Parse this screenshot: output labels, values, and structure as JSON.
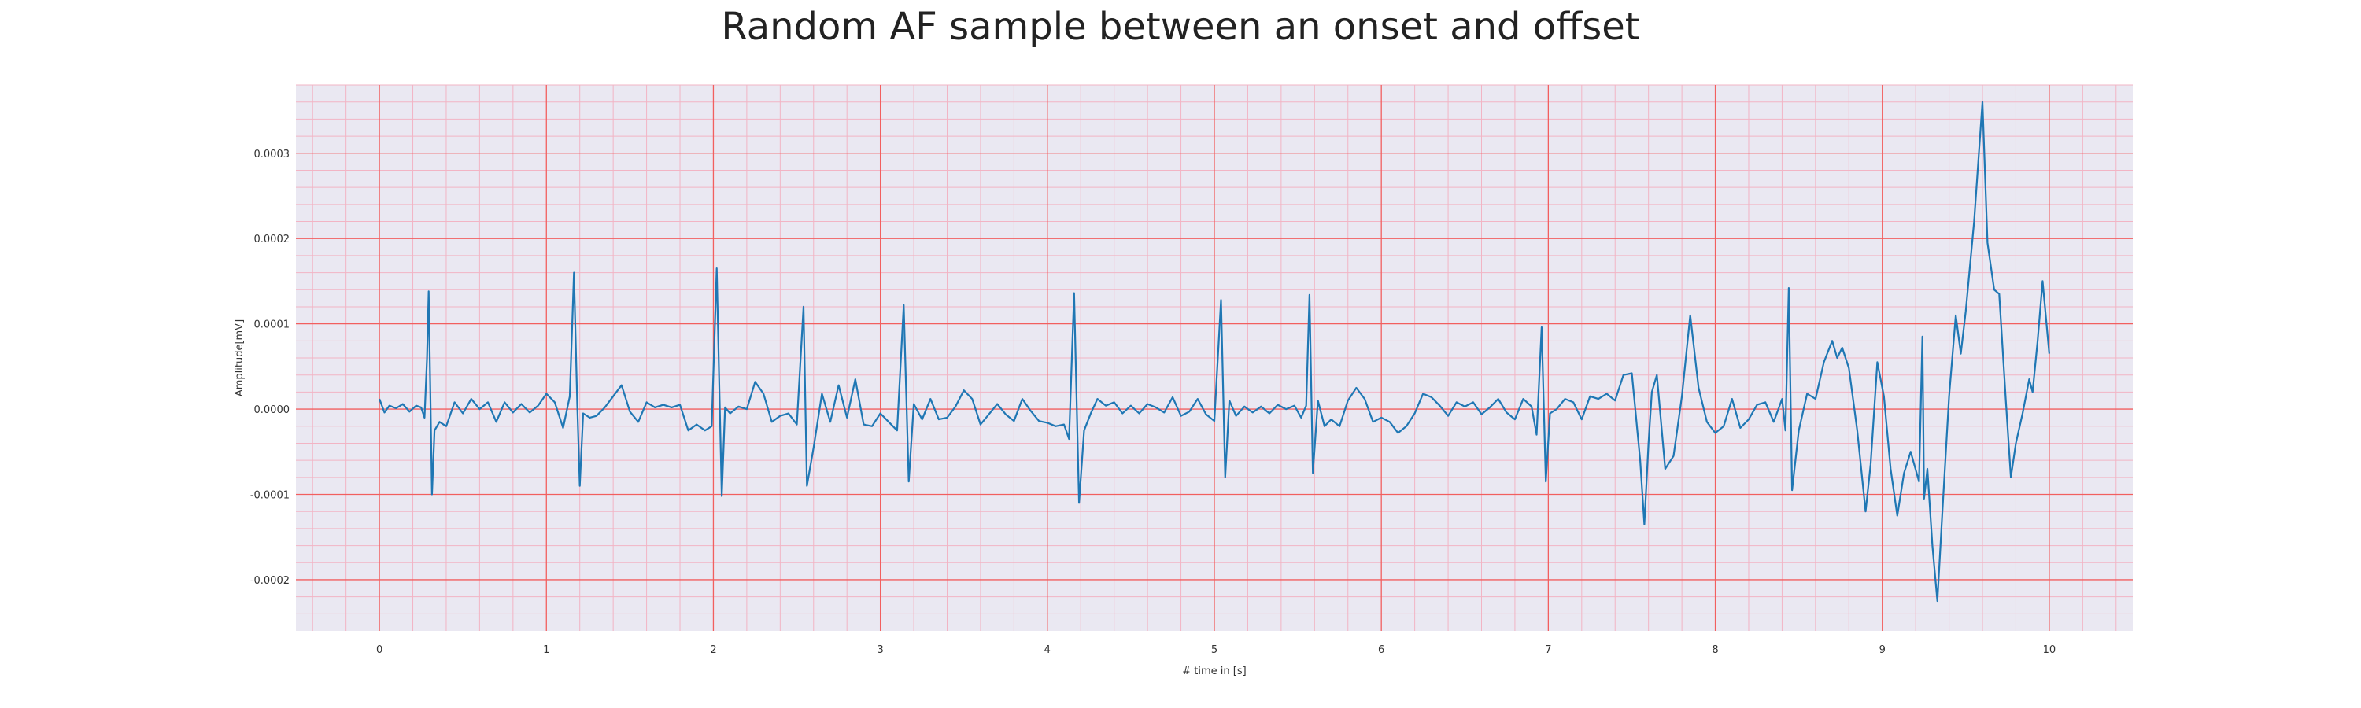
{
  "chart_data": {
    "type": "line",
    "title": "Random AF sample between an onset and offset",
    "xlabel": "# time in [s]",
    "ylabel": "Amplitude[mV]",
    "xlim": [
      -0.5,
      10.5
    ],
    "ylim": [
      -0.00026,
      0.00038
    ],
    "x_ticks": [
      0,
      1,
      2,
      3,
      4,
      5,
      6,
      7,
      8,
      9,
      10
    ],
    "x_tick_labels": [
      "0",
      "1",
      "2",
      "3",
      "4",
      "5",
      "6",
      "7",
      "8",
      "9",
      "10"
    ],
    "y_ticks": [
      -0.0002,
      -0.0001,
      0.0,
      0.0001,
      0.0002,
      0.0003
    ],
    "y_tick_labels": [
      "-0.0002",
      "-0.0001",
      "0.0000",
      "0.0001",
      "0.0002",
      "0.0003"
    ],
    "grid": true,
    "minor_grid": true,
    "colors": {
      "plot_background": "#eae8f2",
      "major_grid": "#f25f5f",
      "minor_grid": "#f2b4c4",
      "line": "#1f77b4"
    },
    "series": [
      {
        "color": "#1f77b4",
        "points": [
          [
            0.0,
            1.2e-05
          ],
          [
            0.03,
            -4e-06
          ],
          [
            0.06,
            4e-06
          ],
          [
            0.1,
            1e-06
          ],
          [
            0.14,
            6e-06
          ],
          [
            0.18,
            -3e-06
          ],
          [
            0.22,
            4e-06
          ],
          [
            0.25,
            2e-06
          ],
          [
            0.27,
            -1e-05
          ],
          [
            0.285,
            6e-05
          ],
          [
            0.295,
            0.000138
          ],
          [
            0.305,
            2e-05
          ],
          [
            0.315,
            -0.0001
          ],
          [
            0.33,
            -2.5e-05
          ],
          [
            0.36,
            -1.5e-05
          ],
          [
            0.4,
            -2e-05
          ],
          [
            0.45,
            8e-06
          ],
          [
            0.5,
            -5e-06
          ],
          [
            0.55,
            1.2e-05
          ],
          [
            0.6,
            0.0
          ],
          [
            0.65,
            8e-06
          ],
          [
            0.7,
            -1.5e-05
          ],
          [
            0.75,
            8e-06
          ],
          [
            0.8,
            -4e-06
          ],
          [
            0.85,
            6e-06
          ],
          [
            0.9,
            -4e-06
          ],
          [
            0.95,
            4e-06
          ],
          [
            1.0,
            1.8e-05
          ],
          [
            1.05,
            8e-06
          ],
          [
            1.1,
            -2.2e-05
          ],
          [
            1.14,
            1.5e-05
          ],
          [
            1.165,
            0.00016
          ],
          [
            1.185,
            5e-06
          ],
          [
            1.2,
            -9e-05
          ],
          [
            1.22,
            -5e-06
          ],
          [
            1.26,
            -1e-05
          ],
          [
            1.3,
            -8e-06
          ],
          [
            1.35,
            2e-06
          ],
          [
            1.4,
            1.5e-05
          ],
          [
            1.45,
            2.8e-05
          ],
          [
            1.5,
            -3e-06
          ],
          [
            1.55,
            -1.5e-05
          ],
          [
            1.6,
            8e-06
          ],
          [
            1.65,
            2e-06
          ],
          [
            1.7,
            5e-06
          ],
          [
            1.75,
            2e-06
          ],
          [
            1.8,
            5e-06
          ],
          [
            1.85,
            -2.5e-05
          ],
          [
            1.9,
            -1.8e-05
          ],
          [
            1.95,
            -2.5e-05
          ],
          [
            1.99,
            -2e-05
          ],
          [
            2.02,
            0.000165
          ],
          [
            2.035,
            3e-05
          ],
          [
            2.05,
            -0.000102
          ],
          [
            2.07,
            2e-06
          ],
          [
            2.1,
            -5e-06
          ],
          [
            2.15,
            3e-06
          ],
          [
            2.2,
            0.0
          ],
          [
            2.25,
            3.2e-05
          ],
          [
            2.3,
            1.8e-05
          ],
          [
            2.35,
            -1.5e-05
          ],
          [
            2.4,
            -8e-06
          ],
          [
            2.45,
            -5e-06
          ],
          [
            2.5,
            -1.8e-05
          ],
          [
            2.54,
            0.00012
          ],
          [
            2.56,
            -9e-05
          ],
          [
            2.6,
            -4.5e-05
          ],
          [
            2.65,
            1.8e-05
          ],
          [
            2.7,
            -1.5e-05
          ],
          [
            2.75,
            2.8e-05
          ],
          [
            2.8,
            -1e-05
          ],
          [
            2.85,
            3.5e-05
          ],
          [
            2.9,
            -1.8e-05
          ],
          [
            2.95,
            -2e-05
          ],
          [
            3.0,
            -5e-06
          ],
          [
            3.05,
            -1.5e-05
          ],
          [
            3.1,
            -2.5e-05
          ],
          [
            3.14,
            0.000122
          ],
          [
            3.17,
            -8.5e-05
          ],
          [
            3.2,
            6e-06
          ],
          [
            3.25,
            -1.2e-05
          ],
          [
            3.3,
            1.2e-05
          ],
          [
            3.35,
            -1.2e-05
          ],
          [
            3.4,
            -1e-05
          ],
          [
            3.45,
            3e-06
          ],
          [
            3.5,
            2.2e-05
          ],
          [
            3.55,
            1.2e-05
          ],
          [
            3.6,
            -1.8e-05
          ],
          [
            3.65,
            -6e-06
          ],
          [
            3.7,
            6e-06
          ],
          [
            3.75,
            -6e-06
          ],
          [
            3.8,
            -1.4e-05
          ],
          [
            3.85,
            1.2e-05
          ],
          [
            3.9,
            -2e-06
          ],
          [
            3.95,
            -1.4e-05
          ],
          [
            4.0,
            -1.6e-05
          ],
          [
            4.05,
            -2e-05
          ],
          [
            4.1,
            -1.8e-05
          ],
          [
            4.13,
            -3.5e-05
          ],
          [
            4.16,
            0.000136
          ],
          [
            4.19,
            -0.00011
          ],
          [
            4.22,
            -2.5e-05
          ],
          [
            4.26,
            -5e-06
          ],
          [
            4.3,
            1.2e-05
          ],
          [
            4.35,
            4e-06
          ],
          [
            4.4,
            8e-06
          ],
          [
            4.45,
            -5e-06
          ],
          [
            4.5,
            4e-06
          ],
          [
            4.55,
            -5e-06
          ],
          [
            4.6,
            6e-06
          ],
          [
            4.65,
            2e-06
          ],
          [
            4.7,
            -4e-06
          ],
          [
            4.75,
            1.4e-05
          ],
          [
            4.8,
            -8e-06
          ],
          [
            4.85,
            -3e-06
          ],
          [
            4.9,
            1.2e-05
          ],
          [
            4.95,
            -6e-06
          ],
          [
            5.0,
            -1.4e-05
          ],
          [
            5.04,
            0.000128
          ],
          [
            5.065,
            -8e-05
          ],
          [
            5.09,
            1e-05
          ],
          [
            5.13,
            -8e-06
          ],
          [
            5.18,
            3e-06
          ],
          [
            5.23,
            -4e-06
          ],
          [
            5.28,
            3e-06
          ],
          [
            5.33,
            -5e-06
          ],
          [
            5.38,
            5e-06
          ],
          [
            5.43,
            0.0
          ],
          [
            5.48,
            4e-06
          ],
          [
            5.52,
            -1e-05
          ],
          [
            5.55,
            4e-06
          ],
          [
            5.57,
            0.000134
          ],
          [
            5.59,
            -7.5e-05
          ],
          [
            5.62,
            1e-05
          ],
          [
            5.66,
            -2e-05
          ],
          [
            5.7,
            -1.2e-05
          ],
          [
            5.75,
            -2e-05
          ],
          [
            5.8,
            1e-05
          ],
          [
            5.85,
            2.5e-05
          ],
          [
            5.9,
            1.2e-05
          ],
          [
            5.95,
            -1.5e-05
          ],
          [
            6.0,
            -1e-05
          ],
          [
            6.05,
            -1.5e-05
          ],
          [
            6.1,
            -2.8e-05
          ],
          [
            6.15,
            -2e-05
          ],
          [
            6.2,
            -5e-06
          ],
          [
            6.25,
            1.8e-05
          ],
          [
            6.3,
            1.4e-05
          ],
          [
            6.35,
            4e-06
          ],
          [
            6.4,
            -8e-06
          ],
          [
            6.45,
            8e-06
          ],
          [
            6.5,
            3e-06
          ],
          [
            6.55,
            8e-06
          ],
          [
            6.6,
            -6e-06
          ],
          [
            6.65,
            2e-06
          ],
          [
            6.7,
            1.2e-05
          ],
          [
            6.75,
            -4e-06
          ],
          [
            6.8,
            -1.2e-05
          ],
          [
            6.85,
            1.2e-05
          ],
          [
            6.9,
            3e-06
          ],
          [
            6.93,
            -3e-05
          ],
          [
            6.96,
            9.6e-05
          ],
          [
            6.985,
            -8.5e-05
          ],
          [
            7.01,
            -5e-06
          ],
          [
            7.05,
            0.0
          ],
          [
            7.1,
            1.2e-05
          ],
          [
            7.15,
            8e-06
          ],
          [
            7.2,
            -1.2e-05
          ],
          [
            7.25,
            1.5e-05
          ],
          [
            7.3,
            1.2e-05
          ],
          [
            7.35,
            1.8e-05
          ],
          [
            7.4,
            1e-05
          ],
          [
            7.45,
            4e-05
          ],
          [
            7.5,
            4.2e-05
          ],
          [
            7.55,
            -6e-05
          ],
          [
            7.575,
            -0.000135
          ],
          [
            7.6,
            -4e-05
          ],
          [
            7.62,
            2e-05
          ],
          [
            7.65,
            4e-05
          ],
          [
            7.7,
            -7e-05
          ],
          [
            7.75,
            -5.5e-05
          ],
          [
            7.8,
            1.5e-05
          ],
          [
            7.85,
            0.00011
          ],
          [
            7.9,
            2.5e-05
          ],
          [
            7.95,
            -1.5e-05
          ],
          [
            8.0,
            -2.8e-05
          ],
          [
            8.05,
            -2e-05
          ],
          [
            8.1,
            1.2e-05
          ],
          [
            8.15,
            -2.2e-05
          ],
          [
            8.2,
            -1.2e-05
          ],
          [
            8.25,
            5e-06
          ],
          [
            8.3,
            8e-06
          ],
          [
            8.35,
            -1.5e-05
          ],
          [
            8.4,
            1.2e-05
          ],
          [
            8.42,
            -2.5e-05
          ],
          [
            8.44,
            0.000142
          ],
          [
            8.46,
            -9.5e-05
          ],
          [
            8.5,
            -2.5e-05
          ],
          [
            8.55,
            1.8e-05
          ],
          [
            8.6,
            1.2e-05
          ],
          [
            8.65,
            5.5e-05
          ],
          [
            8.7,
            8e-05
          ],
          [
            8.73,
            6e-05
          ],
          [
            8.76,
            7.2e-05
          ],
          [
            8.8,
            4.8e-05
          ],
          [
            8.85,
            -2.5e-05
          ],
          [
            8.9,
            -0.00012
          ],
          [
            8.93,
            -6.5e-05
          ],
          [
            8.97,
            5.5e-05
          ],
          [
            9.01,
            1.5e-05
          ],
          [
            9.05,
            -7e-05
          ],
          [
            9.09,
            -0.000125
          ],
          [
            9.13,
            -7.5e-05
          ],
          [
            9.17,
            -5e-05
          ],
          [
            9.22,
            -8.5e-05
          ],
          [
            9.24,
            8.5e-05
          ],
          [
            9.25,
            -0.000105
          ],
          [
            9.27,
            -7e-05
          ],
          [
            9.3,
            -0.00016
          ],
          [
            9.33,
            -0.000225
          ],
          [
            9.36,
            -0.00012
          ],
          [
            9.4,
            1.5e-05
          ],
          [
            9.44,
            0.00011
          ],
          [
            9.47,
            6.5e-05
          ],
          [
            9.5,
            0.000115
          ],
          [
            9.55,
            0.00022
          ],
          [
            9.6,
            0.00036
          ],
          [
            9.63,
            0.000195
          ],
          [
            9.67,
            0.00014
          ],
          [
            9.7,
            0.000135
          ],
          [
            9.74,
            1e-05
          ],
          [
            9.77,
            -8e-05
          ],
          [
            9.8,
            -4e-05
          ],
          [
            9.84,
            -5e-06
          ],
          [
            9.88,
            3.5e-05
          ],
          [
            9.9,
            2e-05
          ],
          [
            9.93,
            8e-05
          ],
          [
            9.96,
            0.00015
          ],
          [
            10.0,
            6.5e-05
          ]
        ]
      }
    ]
  }
}
